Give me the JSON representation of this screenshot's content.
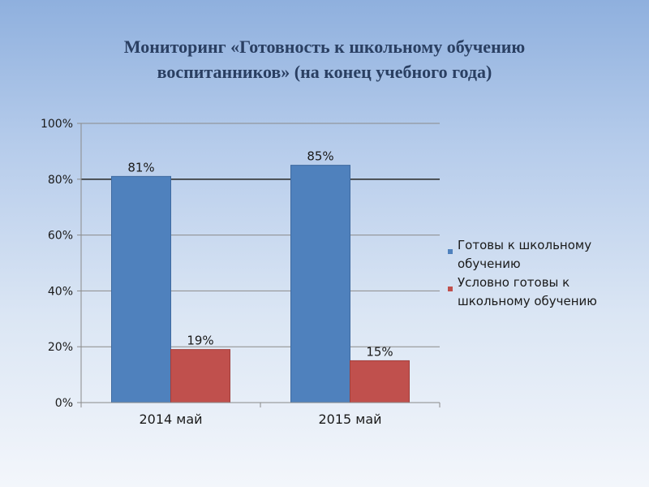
{
  "slide": {
    "title_line1": "Мониторинг «Готовность к школьному обучению",
    "title_line2": "воспитанников» (на конец учебного года)"
  },
  "chart_data": {
    "type": "bar",
    "categories": [
      "2014 май",
      "2015 май"
    ],
    "series": [
      {
        "name": "Готовы к школьному обучению",
        "values": [
          81,
          85
        ],
        "labels": [
          "81%",
          "85%"
        ],
        "color": "#4f81bd"
      },
      {
        "name": "Условно готовы к школьному обучению",
        "values": [
          19,
          15
        ],
        "labels": [
          "19%",
          "15%"
        ],
        "color": "#c0504d"
      }
    ],
    "ylim": [
      0,
      100
    ],
    "y_ticks": [
      0,
      20,
      40,
      60,
      80,
      100
    ],
    "y_tick_labels": [
      "0%",
      "20%",
      "40%",
      "60%",
      "80%",
      "100%"
    ],
    "grid": true,
    "legend_position": "right"
  }
}
